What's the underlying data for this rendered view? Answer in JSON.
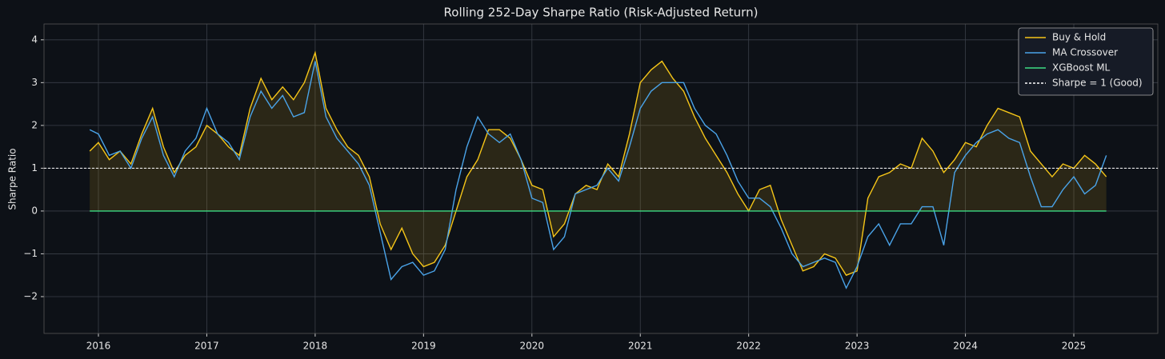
{
  "chart_data": {
    "type": "line",
    "title": "Rolling 252-Day Sharpe Ratio (Risk-Adjusted Return)",
    "y_label": "Sharpe Ratio",
    "x": [
      2015.92,
      2016.0,
      2016.1,
      2016.2,
      2016.3,
      2016.4,
      2016.5,
      2016.6,
      2016.7,
      2016.8,
      2016.9,
      2017.0,
      2017.1,
      2017.2,
      2017.3,
      2017.4,
      2017.5,
      2017.6,
      2017.7,
      2017.8,
      2017.9,
      2018.0,
      2018.1,
      2018.2,
      2018.3,
      2018.4,
      2018.5,
      2018.6,
      2018.7,
      2018.8,
      2018.9,
      2019.0,
      2019.1,
      2019.2,
      2019.3,
      2019.4,
      2019.5,
      2019.6,
      2019.7,
      2019.8,
      2019.9,
      2020.0,
      2020.1,
      2020.2,
      2020.3,
      2020.4,
      2020.5,
      2020.6,
      2020.7,
      2020.8,
      2020.9,
      2021.0,
      2021.1,
      2021.2,
      2021.3,
      2021.4,
      2021.5,
      2021.6,
      2021.7,
      2021.8,
      2021.9,
      2022.0,
      2022.1,
      2022.2,
      2022.3,
      2022.4,
      2022.5,
      2022.6,
      2022.7,
      2022.8,
      2022.9,
      2023.0,
      2023.1,
      2023.2,
      2023.3,
      2023.4,
      2023.5,
      2023.6,
      2023.7,
      2023.8,
      2023.9,
      2024.0,
      2024.1,
      2024.2,
      2024.3,
      2024.4,
      2024.5,
      2024.6,
      2024.7,
      2024.8,
      2024.9,
      2025.0,
      2025.1,
      2025.2,
      2025.3
    ],
    "series": [
      {
        "name": "Buy & Hold",
        "color": "#f5c518",
        "fill": true,
        "values": [
          1.4,
          1.6,
          1.2,
          1.4,
          1.1,
          1.8,
          2.4,
          1.5,
          0.9,
          1.3,
          1.5,
          2.0,
          1.8,
          1.5,
          1.3,
          2.4,
          3.1,
          2.6,
          2.9,
          2.6,
          3.0,
          3.7,
          2.4,
          1.9,
          1.5,
          1.3,
          0.8,
          -0.3,
          -0.9,
          -0.4,
          -1.0,
          -1.3,
          -1.2,
          -0.8,
          0.0,
          0.8,
          1.2,
          1.9,
          1.9,
          1.7,
          1.2,
          0.6,
          0.5,
          -0.6,
          -0.3,
          0.4,
          0.6,
          0.5,
          1.1,
          0.8,
          1.8,
          3.0,
          3.3,
          3.5,
          3.1,
          2.8,
          2.2,
          1.7,
          1.3,
          0.9,
          0.4,
          0.0,
          0.5,
          0.6,
          -0.2,
          -0.8,
          -1.4,
          -1.3,
          -1.0,
          -1.1,
          -1.5,
          -1.4,
          0.3,
          0.8,
          0.9,
          1.1,
          1.0,
          1.7,
          1.4,
          0.9,
          1.2,
          1.6,
          1.5,
          2.0,
          2.4,
          2.3,
          2.2,
          1.4,
          1.1,
          0.8,
          1.1,
          1.0,
          1.3,
          1.1,
          0.8
        ]
      },
      {
        "name": "MA Crossover",
        "color": "#4aa3e8",
        "fill": false,
        "values": [
          1.9,
          1.8,
          1.3,
          1.4,
          1.0,
          1.7,
          2.2,
          1.3,
          0.8,
          1.4,
          1.7,
          2.4,
          1.8,
          1.6,
          1.2,
          2.2,
          2.8,
          2.4,
          2.7,
          2.2,
          2.3,
          3.5,
          2.2,
          1.7,
          1.4,
          1.1,
          0.6,
          -0.5,
          -1.6,
          -1.3,
          -1.2,
          -1.5,
          -1.4,
          -0.9,
          0.5,
          1.5,
          2.2,
          1.8,
          1.6,
          1.8,
          1.2,
          0.3,
          0.2,
          -0.9,
          -0.6,
          0.4,
          0.5,
          0.6,
          1.0,
          0.7,
          1.5,
          2.4,
          2.8,
          3.0,
          3.0,
          3.0,
          2.4,
          2.0,
          1.8,
          1.3,
          0.7,
          0.3,
          0.3,
          0.1,
          -0.4,
          -1.0,
          -1.3,
          -1.2,
          -1.1,
          -1.2,
          -1.8,
          -1.3,
          -0.6,
          -0.3,
          -0.8,
          -0.3,
          -0.3,
          0.1,
          0.1,
          -0.8,
          0.9,
          1.3,
          1.6,
          1.8,
          1.9,
          1.7,
          1.6,
          0.8,
          0.1,
          0.1,
          0.5,
          0.8,
          0.4,
          0.6,
          1.3
        ]
      },
      {
        "name": "XGBoost ML",
        "color": "#3ddc84",
        "fill": false,
        "values": [
          0,
          0,
          0,
          0,
          0,
          0,
          0,
          0,
          0,
          0,
          0,
          0,
          0,
          0,
          0,
          0,
          0,
          0,
          0,
          0,
          0,
          0,
          0,
          0,
          0,
          0,
          0,
          0,
          0,
          0,
          0,
          0,
          0,
          0,
          0,
          0,
          0,
          0,
          0,
          0,
          0,
          0,
          0,
          0,
          0,
          0,
          0,
          0,
          0,
          0,
          0,
          0,
          0,
          0,
          0,
          0,
          0,
          0,
          0,
          0,
          0,
          0,
          0,
          0,
          0,
          0,
          0,
          0,
          0,
          0,
          0,
          0,
          0,
          0,
          0,
          0,
          0,
          0,
          0,
          0,
          0,
          0,
          0,
          0,
          0,
          0,
          0,
          0,
          0,
          0,
          0,
          0,
          0,
          0,
          0
        ]
      }
    ],
    "reference_line": {
      "name": "Sharpe = 1 (Good)",
      "value": 1,
      "color": "#ffffff"
    },
    "xlim": [
      2015.498,
      2025.775
    ],
    "xticks": [
      2016,
      2017,
      2018,
      2019,
      2020,
      2021,
      2022,
      2023,
      2024,
      2025
    ],
    "ylim": [
      -2.86,
      4.37
    ],
    "yticks": [
      {
        "value": -2,
        "label": "−2"
      },
      {
        "value": -1,
        "label": "−1"
      },
      0,
      1,
      2,
      3,
      4
    ],
    "grid": true,
    "legend": "upper right"
  }
}
